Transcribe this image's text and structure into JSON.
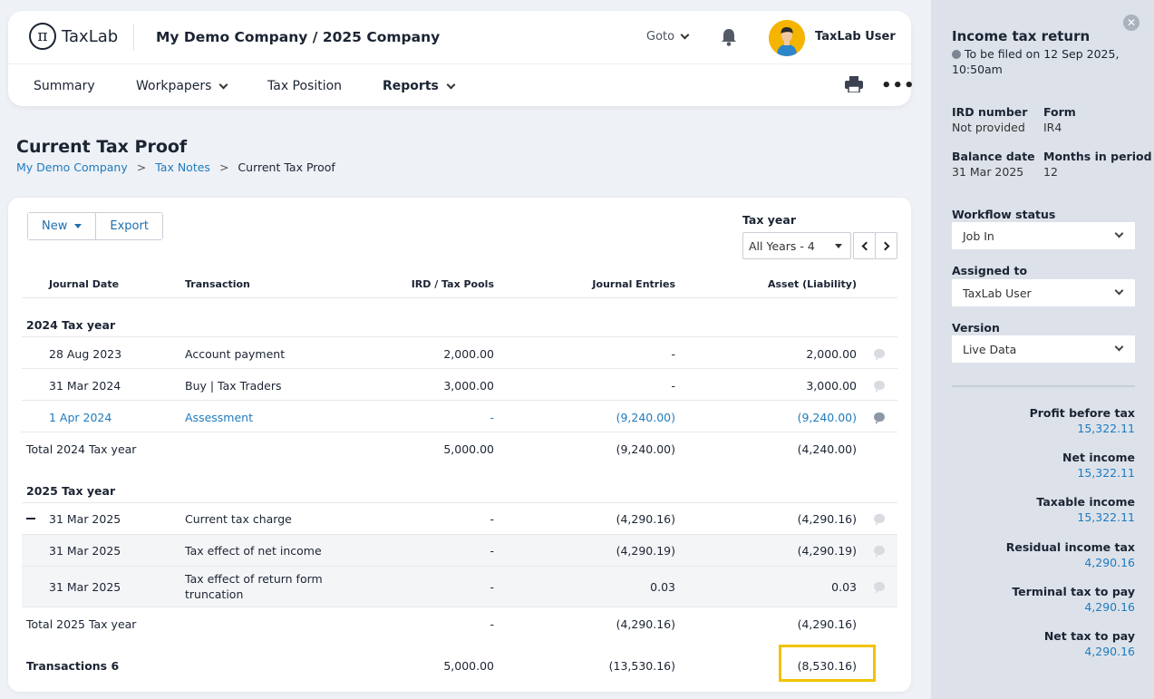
{
  "header": {
    "logo_text": "TaxLab",
    "company": "My Demo Company / 2025 Company",
    "goto": "Goto",
    "user": "TaxLab User"
  },
  "nav": {
    "summary": "Summary",
    "workpapers": "Workpapers",
    "tax_position": "Tax Position",
    "reports": "Reports"
  },
  "page": {
    "title": "Current Tax Proof",
    "breadcrumb": [
      "My Demo Company",
      "Tax Notes",
      "Current Tax Proof"
    ],
    "breadcrumb_sep": ">"
  },
  "toolbar": {
    "new_label": "New",
    "export_label": "Export",
    "tax_year_label": "Tax year",
    "tax_year_value": "All Years - 4"
  },
  "table": {
    "headers": {
      "date": "Journal Date",
      "transaction": "Transaction",
      "ird": "IRD / Tax Pools",
      "journal": "Journal Entries",
      "asset": "Asset (Liability)"
    },
    "group1": {
      "title": "2024 Tax year",
      "rows": [
        {
          "date": "28 Aug 2023",
          "transaction": "Account payment",
          "ird": "2,000.00",
          "journal": "-",
          "asset": "2,000.00"
        },
        {
          "date": "31 Mar 2024",
          "transaction": "Buy | Tax Traders",
          "ird": "3,000.00",
          "journal": "-",
          "asset": "3,000.00"
        },
        {
          "date": "1 Apr 2024",
          "transaction": "Assessment",
          "ird": "-",
          "journal": "(9,240.00)",
          "asset": "(9,240.00)"
        }
      ],
      "total": {
        "label": "Total 2024 Tax year",
        "ird": "5,000.00",
        "journal": "(9,240.00)",
        "asset": "(4,240.00)"
      }
    },
    "group2": {
      "title": "2025 Tax year",
      "rows": [
        {
          "date": "31 Mar 2025",
          "transaction": "Current tax charge",
          "ird": "-",
          "journal": "(4,290.16)",
          "asset": "(4,290.16)"
        },
        {
          "date": "31 Mar 2025",
          "transaction": "Tax effect of net income",
          "ird": "-",
          "journal": "(4,290.19)",
          "asset": "(4,290.19)"
        },
        {
          "date": "31 Mar 2025",
          "transaction_line1": "Tax effect of return form",
          "transaction_line2": "truncation",
          "ird": "-",
          "journal": "0.03",
          "asset": "0.03"
        }
      ],
      "total": {
        "label": "Total 2025 Tax year",
        "ird": "-",
        "journal": "(4,290.16)",
        "asset": "(4,290.16)"
      }
    },
    "grand_total": {
      "label": "Transactions 6",
      "ird": "5,000.00",
      "journal": "(13,530.16)",
      "asset": "(8,530.16)"
    }
  },
  "side": {
    "title": "Income tax return",
    "filed": "To be filed on 12 Sep 2025, 10:50am",
    "ird_label": "IRD number",
    "ird_value": "Not provided",
    "form_label": "Form",
    "form_value": "IR4",
    "balance_label": "Balance date",
    "balance_value": "31 Mar 2025",
    "months_label": "Months in period",
    "months_value": "12",
    "workflow_label": "Workflow status",
    "workflow_value": "Job In",
    "assigned_label": "Assigned to",
    "assigned_value": "TaxLab User",
    "version_label": "Version",
    "version_value": "Live Data",
    "metrics": [
      {
        "label": "Profit before tax",
        "value": "15,322.11"
      },
      {
        "label": "Net income",
        "value": "15,322.11"
      },
      {
        "label": "Taxable income",
        "value": "15,322.11"
      },
      {
        "label": "Residual income tax",
        "value": "4,290.16"
      },
      {
        "label": "Terminal tax to pay",
        "value": "4,290.16"
      },
      {
        "label": "Net tax to pay",
        "value": "4,290.16"
      }
    ]
  },
  "colors": {
    "link": "#1f7bbf",
    "highlight": "#f2c300",
    "side_bg": "#dde2ea"
  }
}
